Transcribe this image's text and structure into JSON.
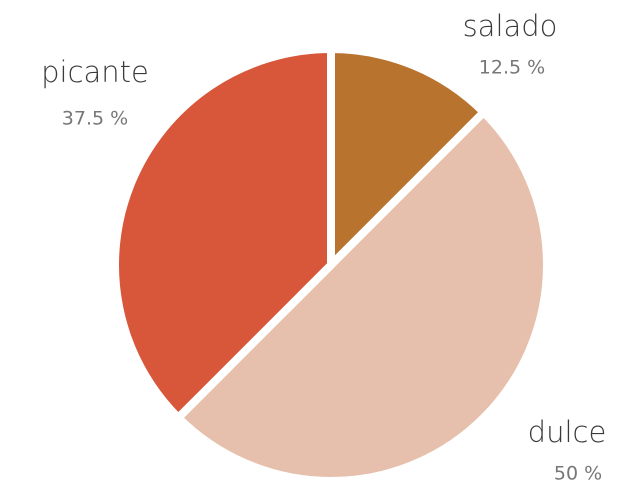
{
  "chart_data": {
    "type": "pie",
    "categories": [
      "salado",
      "dulce",
      "picante"
    ],
    "values": [
      12.5,
      50,
      37.5
    ],
    "value_labels": [
      "12.5 %",
      "50 %",
      "37.5 %"
    ],
    "colors": [
      "#b8742f",
      "#e6c0ad",
      "#d8573b"
    ]
  }
}
